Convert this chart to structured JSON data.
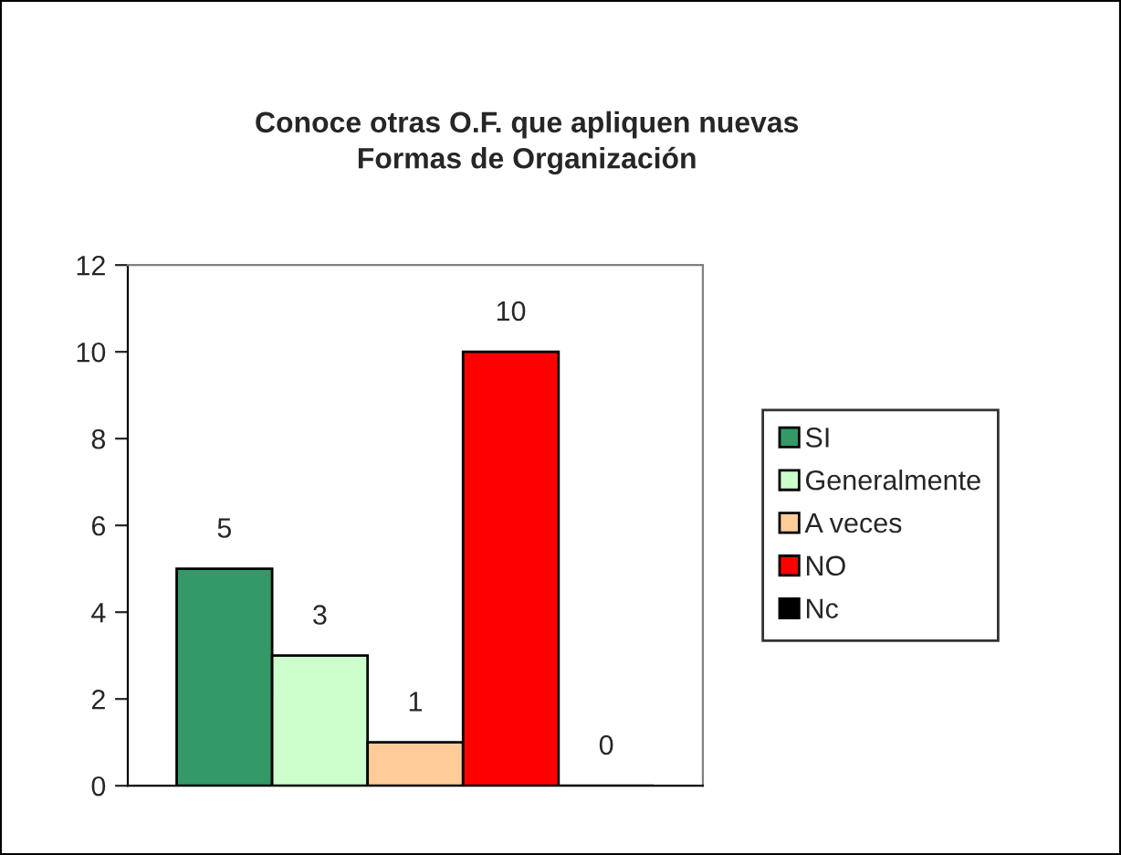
{
  "chart_data": {
    "type": "bar",
    "title": "Conoce otras O.F. que apliquen nuevas\nFormas de Organización",
    "categories": [
      null
    ],
    "series": [
      {
        "name": "SI",
        "color": "#339966",
        "values": [
          5
        ]
      },
      {
        "name": "Generalmente",
        "color": "#ccffcc",
        "values": [
          3
        ]
      },
      {
        "name": "A veces",
        "color": "#ffcc99",
        "values": [
          1
        ]
      },
      {
        "name": "NO",
        "color": "#ff0000",
        "values": [
          10
        ]
      },
      {
        "name": "Nc",
        "color": "#000000",
        "values": [
          0
        ]
      }
    ],
    "ylim": [
      0,
      12
    ],
    "yticks": [
      0,
      2,
      4,
      6,
      8,
      10,
      12
    ],
    "grid": false,
    "legend": "right",
    "data_labels": true
  }
}
